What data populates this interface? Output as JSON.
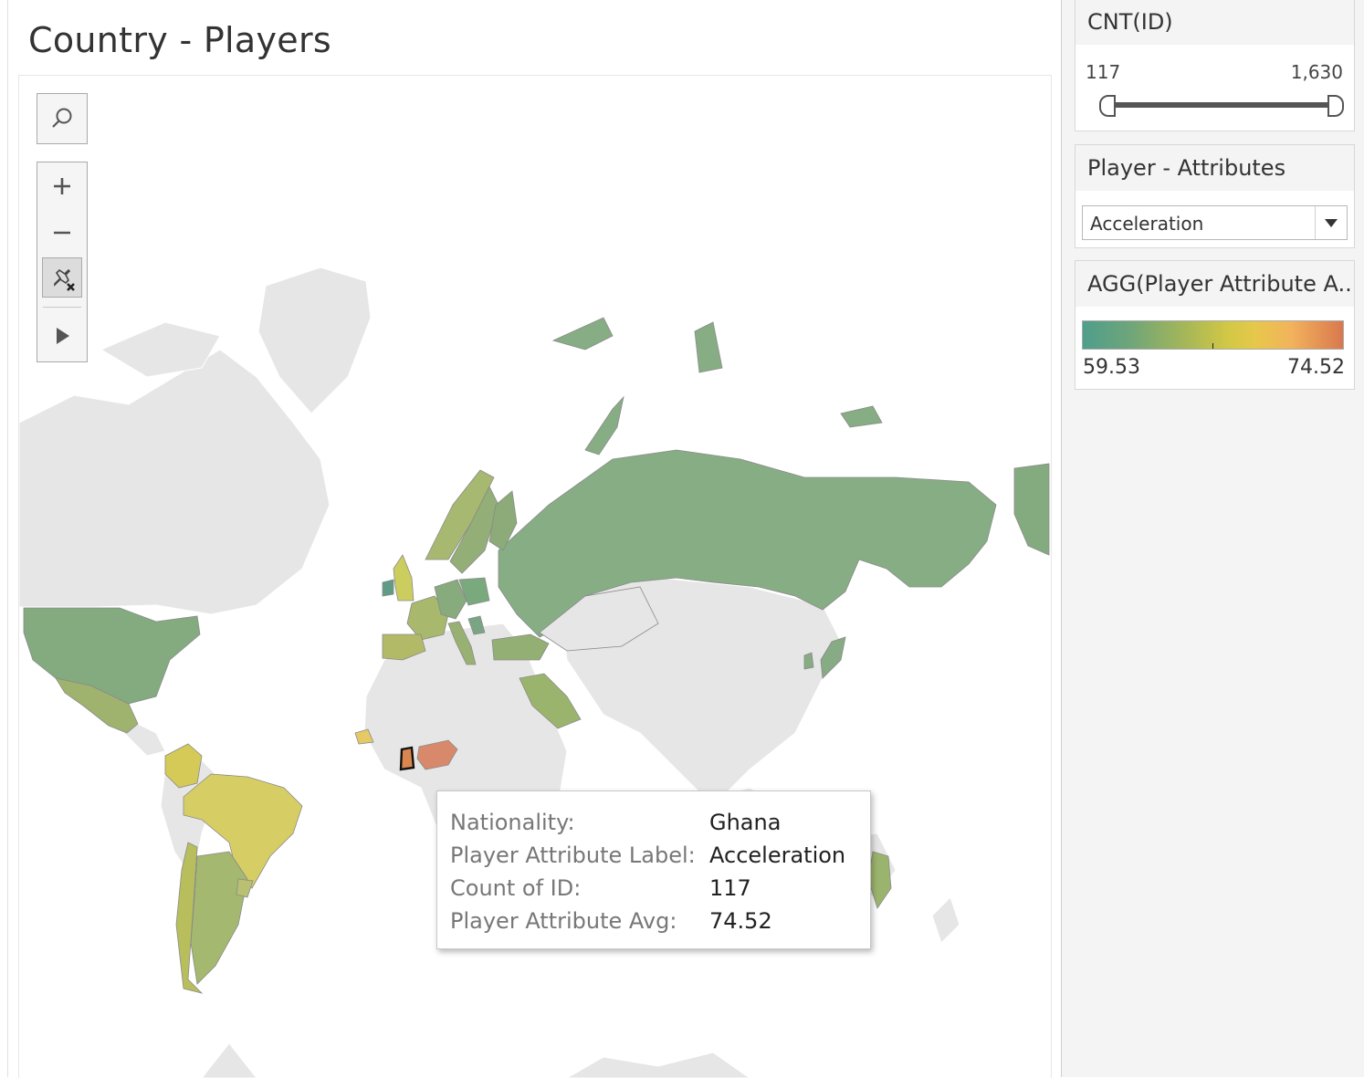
{
  "title": "Country - Players",
  "map_controls": {
    "search_icon": "search-icon",
    "zoom_in_icon": "plus-icon",
    "zoom_out_icon": "minus-icon",
    "unpin_icon": "unpin-map-icon",
    "play_icon": "play-icon"
  },
  "cnt_filter": {
    "header": "CNT(ID)",
    "min_label": "117",
    "max_label": "1,630",
    "range": [
      117,
      1630
    ],
    "selected": [
      117,
      1630
    ]
  },
  "attribute_filter": {
    "header": "Player - Attributes",
    "selected": "Acceleration"
  },
  "color_legend": {
    "header": "AGG(Player Attribute A...",
    "min_label": "59.53",
    "max_label": "74.52",
    "colors": [
      "#4f9e8c",
      "#a2b55a",
      "#d2c845",
      "#f2b35c",
      "#d9784e"
    ]
  },
  "tooltip": {
    "rows": [
      {
        "label": "Nationality:",
        "value": "Ghana"
      },
      {
        "label": "Player Attribute Label:",
        "value": "Acceleration"
      },
      {
        "label": "Count of ID:",
        "value": "117"
      },
      {
        "label": "Player Attribute Avg:",
        "value": "74.52"
      }
    ]
  }
}
